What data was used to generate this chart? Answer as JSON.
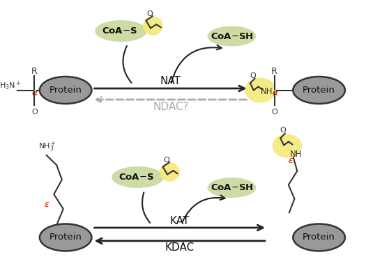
{
  "bg_color": "#ffffff",
  "protein_facecolor": "#999999",
  "protein_edgecolor": "#333333",
  "coa_green": "#c8d89a",
  "acetyl_yellow": "#f5e87a",
  "arrow_color": "#222222",
  "dashed_color": "#aaaaaa",
  "red_color": "#cc2200",
  "text_dark": "#222222",
  "nat_label": "NAT",
  "ndac_label": "NDAC?",
  "kat_label": "KAT",
  "kdac_label": "KDAC"
}
